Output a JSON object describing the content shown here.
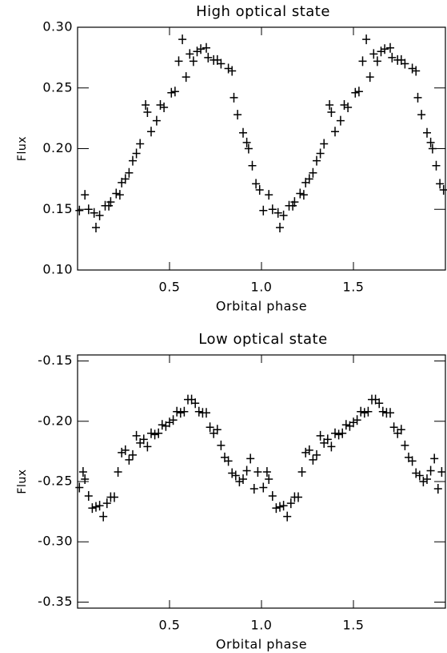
{
  "chart_data": [
    {
      "type": "scatter",
      "title": "High optical state",
      "xlabel": "Orbital phase",
      "ylabel": "Flux",
      "color": "#000000",
      "xlim": [
        0,
        2
      ],
      "ylim": [
        0.1,
        0.3
      ],
      "xticks": [
        0.5,
        {
          "value": 1,
          "label": "1.0"
        },
        1.5
      ],
      "yticks": [
        {
          "value": 0.1,
          "label": "0.10"
        },
        0.15,
        {
          "value": 0.2,
          "label": "0.20"
        },
        0.25,
        {
          "value": 0.3,
          "label": "0.30"
        }
      ],
      "x": [
        0.01,
        0.04,
        0.06,
        0.09,
        0.1,
        0.12,
        0.15,
        0.17,
        0.18,
        0.21,
        0.23,
        0.24,
        0.26,
        0.28,
        0.3,
        0.32,
        0.34,
        0.37,
        0.38,
        0.4,
        0.43,
        0.45,
        0.47,
        0.51,
        0.53,
        0.55,
        0.57,
        0.59,
        0.61,
        0.63,
        0.65,
        0.67,
        0.7,
        0.71,
        0.74,
        0.76,
        0.78,
        0.82,
        0.84,
        0.85,
        0.87,
        0.9,
        0.92,
        0.93,
        0.95,
        0.97,
        0.99,
        1.01,
        1.04,
        1.06,
        1.09,
        1.1,
        1.12,
        1.15,
        1.17,
        1.18,
        1.21,
        1.23,
        1.24,
        1.26,
        1.28,
        1.3,
        1.32,
        1.34,
        1.37,
        1.38,
        1.4,
        1.43,
        1.45,
        1.47,
        1.51,
        1.53,
        1.55,
        1.57,
        1.59,
        1.61,
        1.63,
        1.65,
        1.67,
        1.7,
        1.71,
        1.74,
        1.76,
        1.78,
        1.82,
        1.84,
        1.85,
        1.87,
        1.9,
        1.92,
        1.93,
        1.95,
        1.97,
        1.99
      ],
      "values": [
        0.149,
        0.162,
        0.15,
        0.147,
        0.135,
        0.145,
        0.153,
        0.153,
        0.156,
        0.163,
        0.162,
        0.172,
        0.175,
        0.18,
        0.19,
        0.196,
        0.204,
        0.236,
        0.23,
        0.214,
        0.223,
        0.236,
        0.234,
        0.246,
        0.247,
        0.272,
        0.29,
        0.259,
        0.278,
        0.272,
        0.28,
        0.282,
        0.283,
        0.275,
        0.273,
        0.273,
        0.27,
        0.266,
        0.264,
        0.242,
        0.228,
        0.213,
        0.205,
        0.2,
        0.186,
        0.171,
        0.166,
        0.149,
        0.162,
        0.15,
        0.147,
        0.135,
        0.145,
        0.153,
        0.153,
        0.156,
        0.163,
        0.162,
        0.172,
        0.175,
        0.18,
        0.19,
        0.196,
        0.204,
        0.236,
        0.23,
        0.214,
        0.223,
        0.236,
        0.234,
        0.246,
        0.247,
        0.272,
        0.29,
        0.259,
        0.278,
        0.272,
        0.28,
        0.282,
        0.283,
        0.275,
        0.273,
        0.273,
        0.27,
        0.266,
        0.264,
        0.242,
        0.228,
        0.213,
        0.205,
        0.2,
        0.186,
        0.171,
        0.166
      ]
    },
    {
      "type": "scatter",
      "title": "Low optical state",
      "xlabel": "Orbital phase",
      "ylabel": "Flux",
      "color": "#000000",
      "xlim": [
        0,
        2
      ],
      "ylim": [
        -0.355,
        -0.145
      ],
      "xticks": [
        0.5,
        {
          "value": 1,
          "label": "1.0"
        },
        1.5
      ],
      "yticks": [
        -0.15,
        {
          "value": -0.2,
          "label": "-0.20"
        },
        -0.25,
        {
          "value": -0.3,
          "label": "-0.30"
        },
        -0.35
      ],
      "x": [
        0.01,
        0.03,
        0.04,
        0.06,
        0.08,
        0.1,
        0.12,
        0.14,
        0.16,
        0.18,
        0.2,
        0.22,
        0.24,
        0.26,
        0.28,
        0.3,
        0.32,
        0.34,
        0.36,
        0.38,
        0.4,
        0.42,
        0.44,
        0.46,
        0.48,
        0.5,
        0.52,
        0.54,
        0.56,
        0.58,
        0.6,
        0.62,
        0.64,
        0.66,
        0.68,
        0.7,
        0.72,
        0.74,
        0.76,
        0.78,
        0.8,
        0.82,
        0.84,
        0.86,
        0.88,
        0.9,
        0.92,
        0.94,
        0.96,
        0.98,
        1.01,
        1.03,
        1.04,
        1.06,
        1.08,
        1.1,
        1.12,
        1.14,
        1.16,
        1.18,
        1.2,
        1.22,
        1.24,
        1.26,
        1.28,
        1.3,
        1.32,
        1.34,
        1.36,
        1.38,
        1.4,
        1.42,
        1.44,
        1.46,
        1.48,
        1.5,
        1.52,
        1.54,
        1.56,
        1.58,
        1.6,
        1.62,
        1.64,
        1.66,
        1.68,
        1.7,
        1.72,
        1.74,
        1.76,
        1.78,
        1.8,
        1.82,
        1.84,
        1.86,
        1.88,
        1.9,
        1.92,
        1.94,
        1.96,
        1.98
      ],
      "values": [
        -0.255,
        -0.242,
        -0.248,
        -0.262,
        -0.272,
        -0.271,
        -0.27,
        -0.279,
        -0.268,
        -0.263,
        -0.263,
        -0.242,
        -0.226,
        -0.224,
        -0.232,
        -0.228,
        -0.212,
        -0.218,
        -0.215,
        -0.221,
        -0.21,
        -0.211,
        -0.21,
        -0.203,
        -0.204,
        -0.201,
        -0.199,
        -0.192,
        -0.193,
        -0.192,
        -0.182,
        -0.182,
        -0.185,
        -0.192,
        -0.193,
        -0.193,
        -0.205,
        -0.21,
        -0.207,
        -0.22,
        -0.23,
        -0.233,
        -0.243,
        -0.245,
        -0.25,
        -0.248,
        -0.241,
        -0.231,
        -0.256,
        -0.242,
        -0.255,
        -0.242,
        -0.248,
        -0.262,
        -0.272,
        -0.271,
        -0.27,
        -0.279,
        -0.268,
        -0.263,
        -0.263,
        -0.242,
        -0.226,
        -0.224,
        -0.232,
        -0.228,
        -0.212,
        -0.218,
        -0.215,
        -0.221,
        -0.21,
        -0.211,
        -0.21,
        -0.203,
        -0.204,
        -0.201,
        -0.199,
        -0.192,
        -0.193,
        -0.192,
        -0.182,
        -0.182,
        -0.185,
        -0.192,
        -0.193,
        -0.193,
        -0.205,
        -0.21,
        -0.207,
        -0.22,
        -0.23,
        -0.233,
        -0.243,
        -0.245,
        -0.25,
        -0.248,
        -0.241,
        -0.231,
        -0.256,
        -0.242
      ]
    }
  ]
}
